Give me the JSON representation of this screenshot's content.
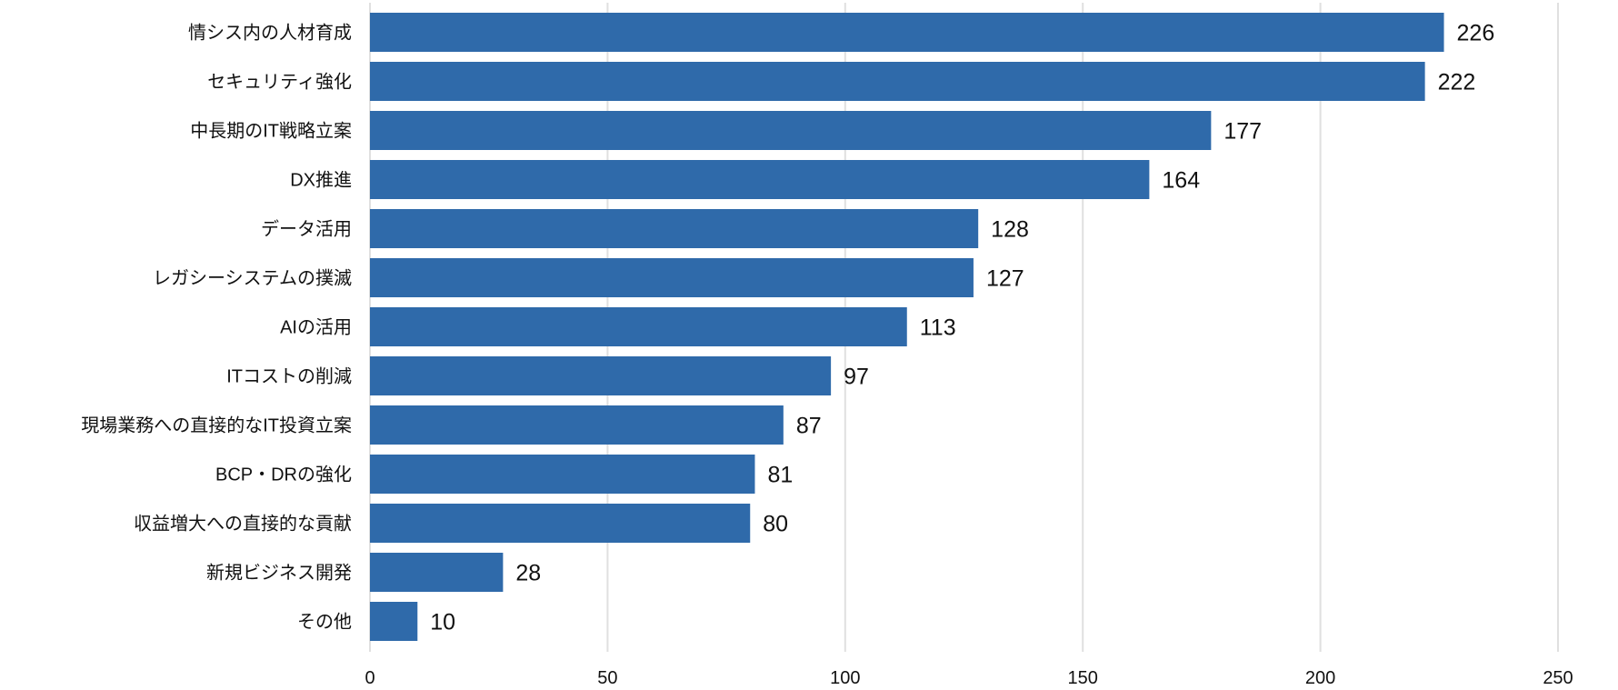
{
  "chart_data": {
    "type": "bar",
    "orientation": "horizontal",
    "title": "",
    "xlabel": "",
    "ylabel": "",
    "categories": [
      "情シス内の人材育成",
      "セキュリティ強化",
      "中長期のIT戦略立案",
      "DX推進",
      "データ活用",
      "レガシーシステムの撲滅",
      "AIの活用",
      "ITコストの削減",
      "現場業務への直接的なIT投資立案",
      "BCP・DRの強化",
      "収益増大への直接的な貢献",
      "新規ビジネス開発",
      "その他"
    ],
    "values": [
      226,
      222,
      177,
      164,
      128,
      127,
      113,
      97,
      87,
      81,
      80,
      28,
      10
    ],
    "xlim": [
      0,
      250
    ],
    "xticks": [
      0,
      50,
      100,
      150,
      200,
      250
    ],
    "grid": true,
    "data_labels": true,
    "bar_color": "#2f6aaa",
    "grid_color": "#e0e0e0"
  }
}
